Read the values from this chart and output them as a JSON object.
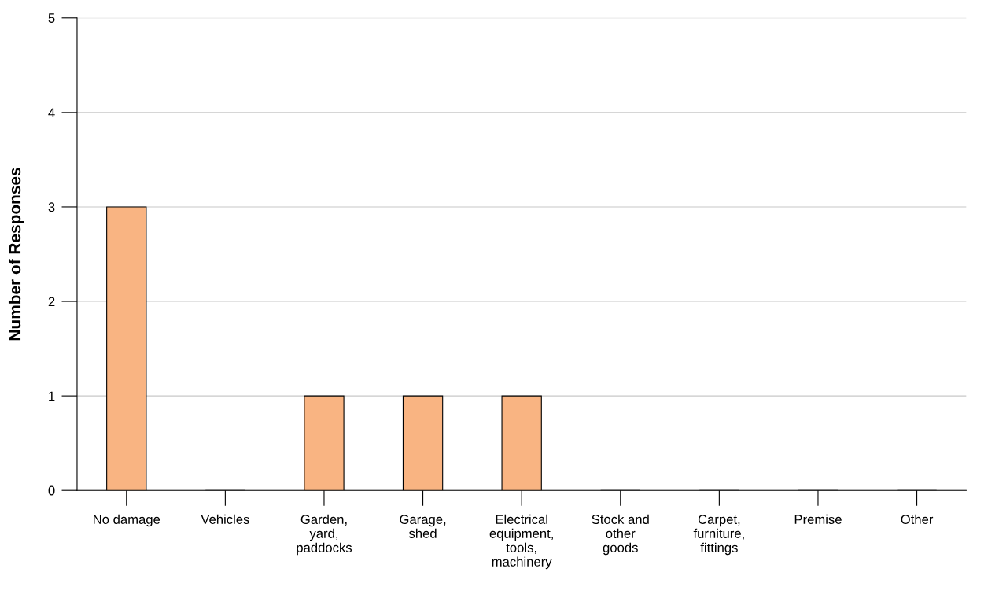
{
  "chart_data": {
    "type": "bar",
    "ylabel": "Number of Responses",
    "categories": [
      "No damage",
      "Vehicles",
      "Garden,\nyard,\npaddocks",
      "Garage,\nshed",
      "Electrical\nequipment,\ntools,\nmachinery",
      "Stock and\nother\ngoods",
      "Carpet,\nfurniture,\nfittings",
      "Premise",
      "Other"
    ],
    "values": [
      3,
      0,
      1,
      1,
      1,
      0,
      0,
      0,
      0
    ],
    "color": "#f9b482",
    "ylim": [
      0,
      5
    ],
    "yticks": [
      0,
      1,
      2,
      3,
      4,
      5
    ],
    "grid": "y"
  }
}
